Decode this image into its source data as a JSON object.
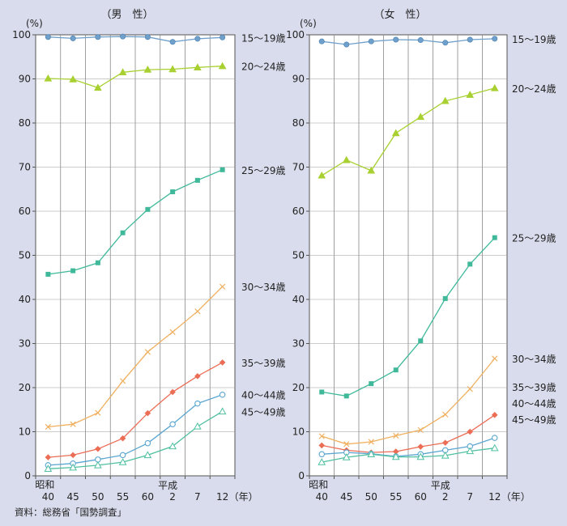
{
  "source": "資料：総務省「国勢調査」",
  "x_axis": {
    "era_start": "昭和",
    "era_heisei": "平成",
    "ticks": [
      "40",
      "45",
      "50",
      "55",
      "60",
      "2",
      "7",
      "12"
    ],
    "unit": "（年）"
  },
  "y_axis": {
    "unit": "(%)",
    "ticks": [
      "0",
      "10",
      "20",
      "30",
      "40",
      "50",
      "60",
      "70",
      "80",
      "90",
      "100"
    ]
  },
  "chart_data": [
    {
      "type": "line",
      "title": "（男　性）",
      "x": [
        "昭和40",
        "45",
        "50",
        "55",
        "60",
        "平成2",
        "7",
        "12"
      ],
      "ylim": [
        0,
        100
      ],
      "grid": true,
      "series": [
        {
          "name": "15～19歳",
          "color": "#6f9fcb",
          "marker": "circle",
          "values": [
            99.5,
            99.2,
            99.5,
            99.6,
            99.5,
            98.4,
            99.1,
            99.4
          ]
        },
        {
          "name": "20～24歳",
          "color": "#a8d030",
          "marker": "triangle",
          "values": [
            90.1,
            89.9,
            88.0,
            91.5,
            92.1,
            92.2,
            92.6,
            92.9
          ]
        },
        {
          "name": "25～29歳",
          "color": "#3fb99a",
          "marker": "square",
          "values": [
            45.7,
            46.5,
            48.3,
            55.1,
            60.4,
            64.4,
            67.0,
            69.4
          ]
        },
        {
          "name": "30～34歳",
          "color": "#f0b060",
          "marker": "cross",
          "values": [
            11.1,
            11.7,
            14.3,
            21.5,
            28.1,
            32.6,
            37.3,
            42.9
          ]
        },
        {
          "name": "35～39歳",
          "color": "#ec6d55",
          "marker": "diamond",
          "values": [
            4.2,
            4.7,
            6.1,
            8.5,
            14.2,
            19.0,
            22.6,
            25.7
          ]
        },
        {
          "name": "40～44歳",
          "color": "#5aa6d0",
          "marker": "open-circle",
          "values": [
            2.4,
            2.8,
            3.7,
            4.7,
            7.4,
            11.7,
            16.4,
            18.4
          ]
        },
        {
          "name": "45～49歳",
          "color": "#4fc0a0",
          "marker": "open-triangle",
          "values": [
            1.6,
            1.9,
            2.4,
            3.1,
            4.7,
            6.7,
            11.2,
            14.6
          ]
        }
      ]
    },
    {
      "type": "line",
      "title": "（女　性）",
      "x": [
        "昭和40",
        "45",
        "50",
        "55",
        "60",
        "平成2",
        "7",
        "12"
      ],
      "ylim": [
        0,
        100
      ],
      "grid": true,
      "series": [
        {
          "name": "15～19歳",
          "color": "#6f9fcb",
          "marker": "circle",
          "values": [
            98.5,
            97.8,
            98.5,
            98.9,
            98.8,
            98.2,
            98.9,
            99.1
          ]
        },
        {
          "name": "20～24歳",
          "color": "#a8d030",
          "marker": "triangle",
          "values": [
            68.1,
            71.6,
            69.2,
            77.7,
            81.4,
            85.0,
            86.4,
            87.9
          ]
        },
        {
          "name": "25～29歳",
          "color": "#3fb99a",
          "marker": "square",
          "values": [
            19.0,
            18.1,
            20.9,
            24.0,
            30.6,
            40.2,
            48.0,
            54.0
          ]
        },
        {
          "name": "30～34歳",
          "color": "#f0b060",
          "marker": "cross",
          "values": [
            9.0,
            7.2,
            7.7,
            9.1,
            10.4,
            13.9,
            19.7,
            26.6
          ]
        },
        {
          "name": "35～39歳",
          "color": "#ec6d55",
          "marker": "diamond",
          "values": [
            6.9,
            5.8,
            5.3,
            5.5,
            6.6,
            7.5,
            10.0,
            13.8
          ]
        },
        {
          "name": "40～44歳",
          "color": "#5aa6d0",
          "marker": "open-circle",
          "values": [
            4.9,
            5.3,
            5.0,
            4.4,
            4.9,
            5.8,
            6.7,
            8.6
          ]
        },
        {
          "name": "45～49歳",
          "color": "#4fc0a0",
          "marker": "open-triangle",
          "values": [
            3.1,
            4.2,
            4.9,
            4.3,
            4.3,
            4.6,
            5.6,
            6.3
          ]
        }
      ]
    }
  ]
}
